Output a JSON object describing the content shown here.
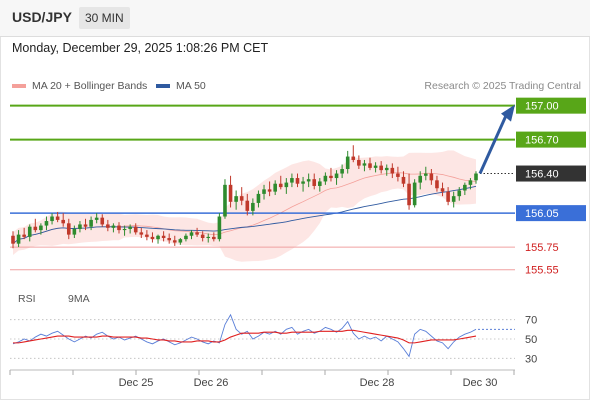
{
  "header": {
    "symbol": "USD/JPY",
    "timeframe": "30 MIN"
  },
  "timestamp": "Monday, December 29, 2025 1:08:26 PM CET",
  "legend": {
    "bollinger": {
      "label": "MA 20 + Bollinger Bands",
      "color": "#f4a09a"
    },
    "ma50": {
      "label": "MA 50",
      "color": "#2f5aa0"
    }
  },
  "credit": "Research © 2025 Trading Central",
  "rsi_legend": {
    "rsi": {
      "label": "RSI",
      "color": "#5a7fd8"
    },
    "ma9": {
      "label": "9MA",
      "color": "#e02020"
    }
  },
  "chart_data": {
    "type": "candlestick",
    "x_labels": [
      "Dec 25",
      "Dec 26",
      "Dec 28",
      "Dec 30"
    ],
    "price_range": [
      155.45,
      157.05
    ],
    "levels": [
      {
        "value": 157.0,
        "label": "157.00",
        "color": "#58a618",
        "kind": "target"
      },
      {
        "value": 156.7,
        "label": "156.70",
        "color": "#58a618",
        "kind": "target"
      },
      {
        "value": 156.4,
        "label": "156.40",
        "color": "#333333",
        "kind": "current"
      },
      {
        "value": 156.05,
        "label": "156.05",
        "color": "#3a6fd8",
        "kind": "pivot"
      },
      {
        "value": 155.75,
        "label": "155.75",
        "color": "#e06060",
        "kind": "support"
      },
      {
        "value": 155.55,
        "label": "155.55",
        "color": "#e06060",
        "kind": "support"
      }
    ],
    "forecast": {
      "from": 156.4,
      "to": 157.0,
      "color": "#2f5aa0"
    },
    "candle_colors": {
      "up": "#2e8b2e",
      "down": "#c0392b"
    },
    "candles": [
      [
        155.85,
        155.89,
        155.74,
        155.78
      ],
      [
        155.78,
        155.9,
        155.75,
        155.86
      ],
      [
        155.86,
        155.92,
        155.82,
        155.84
      ],
      [
        155.84,
        155.95,
        155.8,
        155.93
      ],
      [
        155.93,
        156.0,
        155.88,
        155.9
      ],
      [
        155.9,
        155.96,
        155.86,
        155.94
      ],
      [
        155.94,
        156.02,
        155.9,
        155.98
      ],
      [
        155.98,
        156.05,
        155.95,
        156.02
      ],
      [
        156.02,
        156.06,
        155.97,
        155.99
      ],
      [
        155.99,
        156.05,
        155.93,
        155.96
      ],
      [
        155.96,
        156.0,
        155.82,
        155.86
      ],
      [
        155.86,
        155.94,
        155.83,
        155.91
      ],
      [
        155.91,
        155.98,
        155.88,
        155.95
      ],
      [
        155.95,
        156.0,
        155.9,
        155.93
      ],
      [
        155.93,
        156.02,
        155.9,
        155.99
      ],
      [
        155.99,
        156.05,
        155.96,
        156.01
      ],
      [
        156.01,
        156.04,
        155.93,
        155.95
      ],
      [
        155.95,
        155.99,
        155.89,
        155.92
      ],
      [
        155.92,
        155.96,
        155.88,
        155.94
      ],
      [
        155.94,
        155.97,
        155.87,
        155.9
      ],
      [
        155.9,
        155.94,
        155.85,
        155.91
      ],
      [
        155.91,
        155.95,
        155.87,
        155.93
      ],
      [
        155.93,
        155.96,
        155.86,
        155.88
      ],
      [
        155.88,
        155.92,
        155.83,
        155.86
      ],
      [
        155.86,
        155.9,
        155.81,
        155.84
      ],
      [
        155.84,
        155.88,
        155.79,
        155.82
      ],
      [
        155.82,
        155.86,
        155.78,
        155.85
      ],
      [
        155.85,
        155.89,
        155.8,
        155.83
      ],
      [
        155.83,
        155.87,
        155.78,
        155.81
      ],
      [
        155.81,
        155.85,
        155.76,
        155.79
      ],
      [
        155.79,
        155.83,
        155.77,
        155.82
      ],
      [
        155.82,
        155.87,
        155.8,
        155.85
      ],
      [
        155.85,
        155.9,
        155.82,
        155.88
      ],
      [
        155.88,
        155.92,
        155.84,
        155.86
      ],
      [
        155.86,
        155.89,
        155.8,
        155.83
      ],
      [
        155.83,
        155.87,
        155.79,
        155.84
      ],
      [
        155.84,
        155.88,
        155.8,
        155.82
      ],
      [
        155.82,
        156.05,
        155.8,
        156.02
      ],
      [
        156.02,
        156.35,
        156.0,
        156.3
      ],
      [
        156.3,
        156.38,
        156.1,
        156.15
      ],
      [
        156.15,
        156.25,
        156.08,
        156.2
      ],
      [
        156.2,
        156.28,
        156.12,
        156.16
      ],
      [
        156.16,
        156.22,
        156.03,
        156.07
      ],
      [
        156.07,
        156.18,
        156.03,
        156.14
      ],
      [
        156.14,
        156.25,
        156.1,
        156.22
      ],
      [
        156.22,
        156.3,
        156.17,
        156.26
      ],
      [
        156.26,
        156.33,
        156.2,
        156.24
      ],
      [
        156.24,
        156.34,
        156.21,
        156.31
      ],
      [
        156.31,
        156.38,
        156.26,
        156.28
      ],
      [
        156.28,
        156.36,
        156.22,
        156.32
      ],
      [
        156.32,
        156.4,
        156.28,
        156.36
      ],
      [
        156.36,
        156.4,
        156.28,
        156.31
      ],
      [
        156.31,
        156.37,
        156.24,
        156.33
      ],
      [
        156.33,
        156.4,
        156.28,
        156.35
      ],
      [
        156.35,
        156.4,
        156.26,
        156.29
      ],
      [
        156.29,
        156.36,
        156.24,
        156.33
      ],
      [
        156.33,
        156.41,
        156.3,
        156.38
      ],
      [
        156.38,
        156.45,
        156.33,
        156.36
      ],
      [
        156.36,
        156.43,
        156.3,
        156.4
      ],
      [
        156.4,
        156.48,
        156.36,
        156.44
      ],
      [
        156.44,
        156.6,
        156.4,
        156.55
      ],
      [
        156.55,
        156.65,
        156.5,
        156.52
      ],
      [
        156.52,
        156.56,
        156.44,
        156.47
      ],
      [
        156.47,
        156.52,
        156.42,
        156.49
      ],
      [
        156.49,
        156.54,
        156.43,
        156.45
      ],
      [
        156.45,
        156.5,
        156.41,
        156.47
      ],
      [
        156.47,
        156.51,
        156.4,
        156.43
      ],
      [
        156.43,
        156.48,
        156.38,
        156.45
      ],
      [
        156.45,
        156.49,
        156.36,
        156.4
      ],
      [
        156.4,
        156.46,
        156.33,
        156.37
      ],
      [
        156.37,
        156.42,
        156.28,
        156.31
      ],
      [
        156.31,
        156.4,
        156.08,
        156.12
      ],
      [
        156.12,
        156.35,
        156.1,
        156.32
      ],
      [
        156.32,
        156.42,
        156.26,
        156.38
      ],
      [
        156.38,
        156.46,
        156.34,
        156.4
      ],
      [
        156.4,
        156.44,
        156.3,
        156.34
      ],
      [
        156.34,
        156.38,
        156.24,
        156.27
      ],
      [
        156.27,
        156.32,
        156.2,
        156.24
      ],
      [
        156.24,
        156.28,
        156.12,
        156.15
      ],
      [
        156.15,
        156.24,
        156.1,
        156.2
      ],
      [
        156.2,
        156.28,
        156.16,
        156.25
      ],
      [
        156.25,
        156.32,
        156.21,
        156.3
      ],
      [
        156.3,
        156.36,
        156.26,
        156.34
      ],
      [
        156.34,
        156.42,
        156.31,
        156.4
      ]
    ],
    "rsi": {
      "y_ticks": [
        70,
        50,
        30
      ],
      "range": [
        20,
        80
      ],
      "values": [
        45,
        47,
        50,
        48,
        52,
        55,
        53,
        56,
        58,
        54,
        50,
        47,
        50,
        53,
        51,
        55,
        57,
        53,
        50,
        52,
        49,
        51,
        53,
        50,
        47,
        45,
        48,
        50,
        47,
        44,
        46,
        49,
        52,
        50,
        47,
        45,
        48,
        46,
        65,
        75,
        60,
        55,
        58,
        50,
        53,
        57,
        55,
        58,
        55,
        60,
        62,
        55,
        58,
        60,
        56,
        58,
        62,
        60,
        57,
        61,
        68,
        56,
        50,
        53,
        50,
        52,
        48,
        53,
        50,
        47,
        40,
        32,
        55,
        60,
        58,
        53,
        48,
        46,
        40,
        47,
        52,
        55,
        57,
        60
      ],
      "ma9": [
        46,
        46,
        47,
        48,
        49,
        50,
        51,
        52,
        53,
        53,
        53,
        52,
        52,
        52,
        52,
        52,
        53,
        53,
        52,
        52,
        52,
        52,
        52,
        51,
        51,
        50,
        49,
        49,
        48,
        48,
        47,
        47,
        47,
        48,
        48,
        48,
        47,
        47,
        49,
        52,
        54,
        56,
        56,
        56,
        56,
        57,
        57,
        57,
        56,
        56,
        57,
        57,
        57,
        57,
        57,
        58,
        58,
        58,
        58,
        58,
        59,
        59,
        58,
        57,
        56,
        55,
        54,
        53,
        52,
        51,
        49,
        46,
        46,
        47,
        48,
        49,
        49,
        49,
        49,
        49,
        50,
        51,
        52,
        53
      ]
    }
  }
}
